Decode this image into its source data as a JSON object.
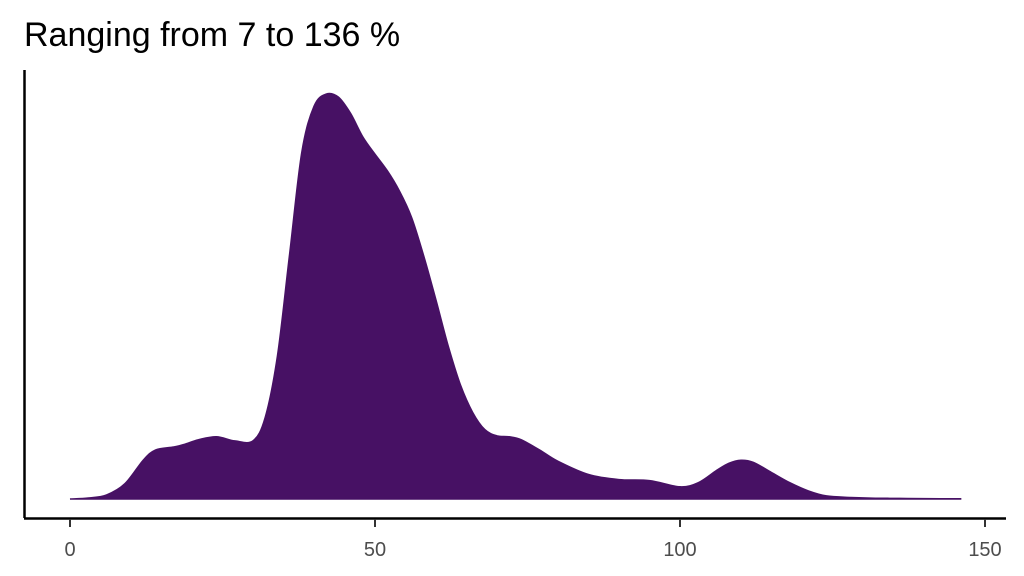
{
  "chart_data": {
    "type": "area",
    "title": "Ranging from 7 to 136 %",
    "xlabel": "",
    "ylabel": "",
    "xlim": [
      0,
      150
    ],
    "x_ticks": [
      0,
      50,
      100,
      150
    ],
    "x_tick_labels": [
      "0",
      "50",
      "100",
      "150"
    ],
    "y_ticks_shown": false,
    "grid": false,
    "fill_color": "#471164",
    "series": [
      {
        "x": [
          0,
          3,
          6,
          9,
          12,
          14,
          17,
          19,
          21,
          24,
          27,
          30,
          32,
          34,
          36,
          38,
          40,
          42,
          44,
          46,
          48,
          50,
          52,
          54,
          56,
          58,
          60,
          62,
          64,
          66,
          68,
          70,
          72,
          74,
          77,
          80,
          85,
          90,
          95,
          100,
          103,
          106,
          108,
          110,
          112,
          115,
          118,
          121,
          124,
          128,
          132,
          136,
          140,
          146
        ],
        "y": [
          0.0,
          0.01,
          0.04,
          0.15,
          0.38,
          0.48,
          0.51,
          0.54,
          0.58,
          0.61,
          0.57,
          0.57,
          0.8,
          1.4,
          2.4,
          3.4,
          3.85,
          3.97,
          3.94,
          3.78,
          3.55,
          3.38,
          3.22,
          3.02,
          2.76,
          2.38,
          1.95,
          1.5,
          1.12,
          0.85,
          0.68,
          0.62,
          0.61,
          0.58,
          0.48,
          0.37,
          0.24,
          0.19,
          0.18,
          0.12,
          0.16,
          0.28,
          0.35,
          0.38,
          0.36,
          0.26,
          0.16,
          0.08,
          0.03,
          0.015,
          0.008,
          0.006,
          0.004,
          0.002
        ]
      }
    ]
  }
}
